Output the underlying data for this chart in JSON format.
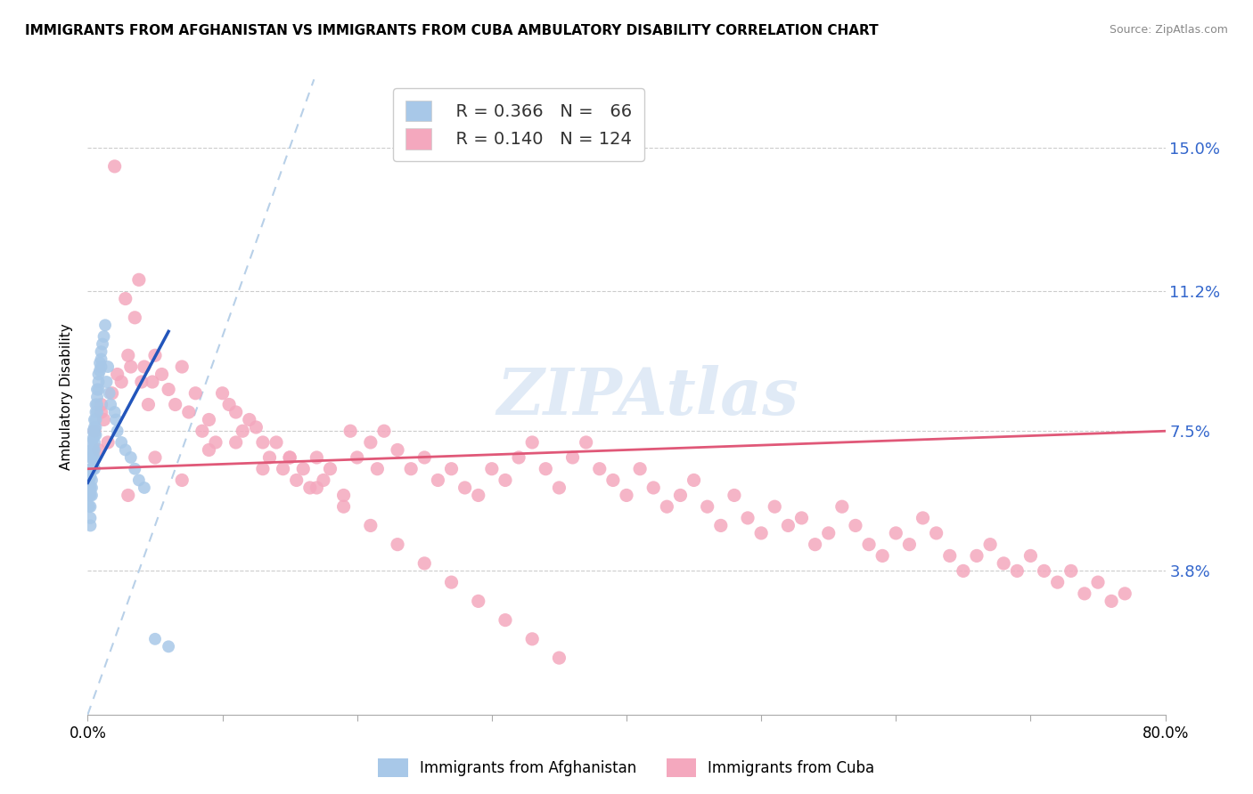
{
  "title": "IMMIGRANTS FROM AFGHANISTAN VS IMMIGRANTS FROM CUBA AMBULATORY DISABILITY CORRELATION CHART",
  "source": "Source: ZipAtlas.com",
  "ylabel": "Ambulatory Disability",
  "xlim": [
    0.0,
    0.8
  ],
  "ylim": [
    0.0,
    0.168
  ],
  "x_tick_positions": [
    0.0,
    0.1,
    0.2,
    0.3,
    0.4,
    0.5,
    0.6,
    0.7,
    0.8
  ],
  "x_tick_labels": [
    "0.0%",
    "",
    "",
    "",
    "",
    "",
    "",
    "",
    "80.0%"
  ],
  "y_tick_positions": [
    0.038,
    0.075,
    0.112,
    0.15
  ],
  "y_tick_labels": [
    "3.8%",
    "7.5%",
    "11.2%",
    "15.0%"
  ],
  "afghanistan_R": 0.366,
  "afghanistan_N": 66,
  "cuba_R": 0.14,
  "cuba_N": 124,
  "afghanistan_color": "#a8c8e8",
  "cuba_color": "#f4a8be",
  "afghanistan_line_color": "#2255bb",
  "cuba_line_color": "#e05878",
  "diagonal_color": "#b8d0e8",
  "watermark": "ZIPAtlas",
  "afghanistan_x": [
    0.001,
    0.001,
    0.001,
    0.001,
    0.002,
    0.002,
    0.002,
    0.002,
    0.002,
    0.002,
    0.002,
    0.002,
    0.003,
    0.003,
    0.003,
    0.003,
    0.003,
    0.003,
    0.003,
    0.004,
    0.004,
    0.004,
    0.004,
    0.004,
    0.005,
    0.005,
    0.005,
    0.005,
    0.005,
    0.005,
    0.005,
    0.006,
    0.006,
    0.006,
    0.006,
    0.006,
    0.007,
    0.007,
    0.007,
    0.007,
    0.008,
    0.008,
    0.008,
    0.009,
    0.009,
    0.01,
    0.01,
    0.01,
    0.011,
    0.012,
    0.013,
    0.014,
    0.015,
    0.016,
    0.017,
    0.02,
    0.021,
    0.022,
    0.025,
    0.028,
    0.032,
    0.035,
    0.038,
    0.042,
    0.05,
    0.06
  ],
  "afghanistan_y": [
    0.062,
    0.06,
    0.058,
    0.055,
    0.068,
    0.065,
    0.063,
    0.06,
    0.058,
    0.055,
    0.052,
    0.05,
    0.072,
    0.07,
    0.068,
    0.065,
    0.062,
    0.06,
    0.058,
    0.075,
    0.073,
    0.07,
    0.068,
    0.065,
    0.078,
    0.076,
    0.074,
    0.072,
    0.07,
    0.068,
    0.065,
    0.082,
    0.08,
    0.078,
    0.076,
    0.074,
    0.086,
    0.084,
    0.082,
    0.08,
    0.09,
    0.088,
    0.086,
    0.093,
    0.091,
    0.096,
    0.094,
    0.092,
    0.098,
    0.1,
    0.103,
    0.088,
    0.092,
    0.085,
    0.082,
    0.08,
    0.078,
    0.075,
    0.072,
    0.07,
    0.068,
    0.065,
    0.062,
    0.06,
    0.02,
    0.018
  ],
  "cuba_x": [
    0.005,
    0.008,
    0.01,
    0.012,
    0.015,
    0.018,
    0.02,
    0.022,
    0.025,
    0.028,
    0.03,
    0.032,
    0.035,
    0.038,
    0.04,
    0.042,
    0.045,
    0.048,
    0.05,
    0.055,
    0.06,
    0.065,
    0.07,
    0.075,
    0.08,
    0.085,
    0.09,
    0.095,
    0.1,
    0.105,
    0.11,
    0.115,
    0.12,
    0.125,
    0.13,
    0.135,
    0.14,
    0.145,
    0.15,
    0.155,
    0.16,
    0.165,
    0.17,
    0.175,
    0.18,
    0.19,
    0.195,
    0.2,
    0.21,
    0.215,
    0.22,
    0.23,
    0.24,
    0.25,
    0.26,
    0.27,
    0.28,
    0.29,
    0.3,
    0.31,
    0.32,
    0.33,
    0.34,
    0.35,
    0.36,
    0.37,
    0.38,
    0.39,
    0.4,
    0.41,
    0.42,
    0.43,
    0.44,
    0.45,
    0.46,
    0.47,
    0.48,
    0.49,
    0.5,
    0.51,
    0.52,
    0.53,
    0.54,
    0.55,
    0.56,
    0.57,
    0.58,
    0.59,
    0.6,
    0.61,
    0.62,
    0.63,
    0.64,
    0.65,
    0.66,
    0.67,
    0.68,
    0.69,
    0.7,
    0.71,
    0.72,
    0.73,
    0.74,
    0.75,
    0.76,
    0.77,
    0.01,
    0.03,
    0.05,
    0.07,
    0.09,
    0.11,
    0.13,
    0.15,
    0.17,
    0.19,
    0.21,
    0.23,
    0.25,
    0.27,
    0.29,
    0.31,
    0.33,
    0.35
  ],
  "cuba_y": [
    0.075,
    0.07,
    0.082,
    0.078,
    0.072,
    0.085,
    0.145,
    0.09,
    0.088,
    0.11,
    0.095,
    0.092,
    0.105,
    0.115,
    0.088,
    0.092,
    0.082,
    0.088,
    0.095,
    0.09,
    0.086,
    0.082,
    0.092,
    0.08,
    0.085,
    0.075,
    0.078,
    0.072,
    0.085,
    0.082,
    0.08,
    0.075,
    0.078,
    0.076,
    0.072,
    0.068,
    0.072,
    0.065,
    0.068,
    0.062,
    0.065,
    0.06,
    0.068,
    0.062,
    0.065,
    0.058,
    0.075,
    0.068,
    0.072,
    0.065,
    0.075,
    0.07,
    0.065,
    0.068,
    0.062,
    0.065,
    0.06,
    0.058,
    0.065,
    0.062,
    0.068,
    0.072,
    0.065,
    0.06,
    0.068,
    0.072,
    0.065,
    0.062,
    0.058,
    0.065,
    0.06,
    0.055,
    0.058,
    0.062,
    0.055,
    0.05,
    0.058,
    0.052,
    0.048,
    0.055,
    0.05,
    0.052,
    0.045,
    0.048,
    0.055,
    0.05,
    0.045,
    0.042,
    0.048,
    0.045,
    0.052,
    0.048,
    0.042,
    0.038,
    0.042,
    0.045,
    0.04,
    0.038,
    0.042,
    0.038,
    0.035,
    0.038,
    0.032,
    0.035,
    0.03,
    0.032,
    0.08,
    0.058,
    0.068,
    0.062,
    0.07,
    0.072,
    0.065,
    0.068,
    0.06,
    0.055,
    0.05,
    0.045,
    0.04,
    0.035,
    0.03,
    0.025,
    0.02,
    0.015
  ]
}
